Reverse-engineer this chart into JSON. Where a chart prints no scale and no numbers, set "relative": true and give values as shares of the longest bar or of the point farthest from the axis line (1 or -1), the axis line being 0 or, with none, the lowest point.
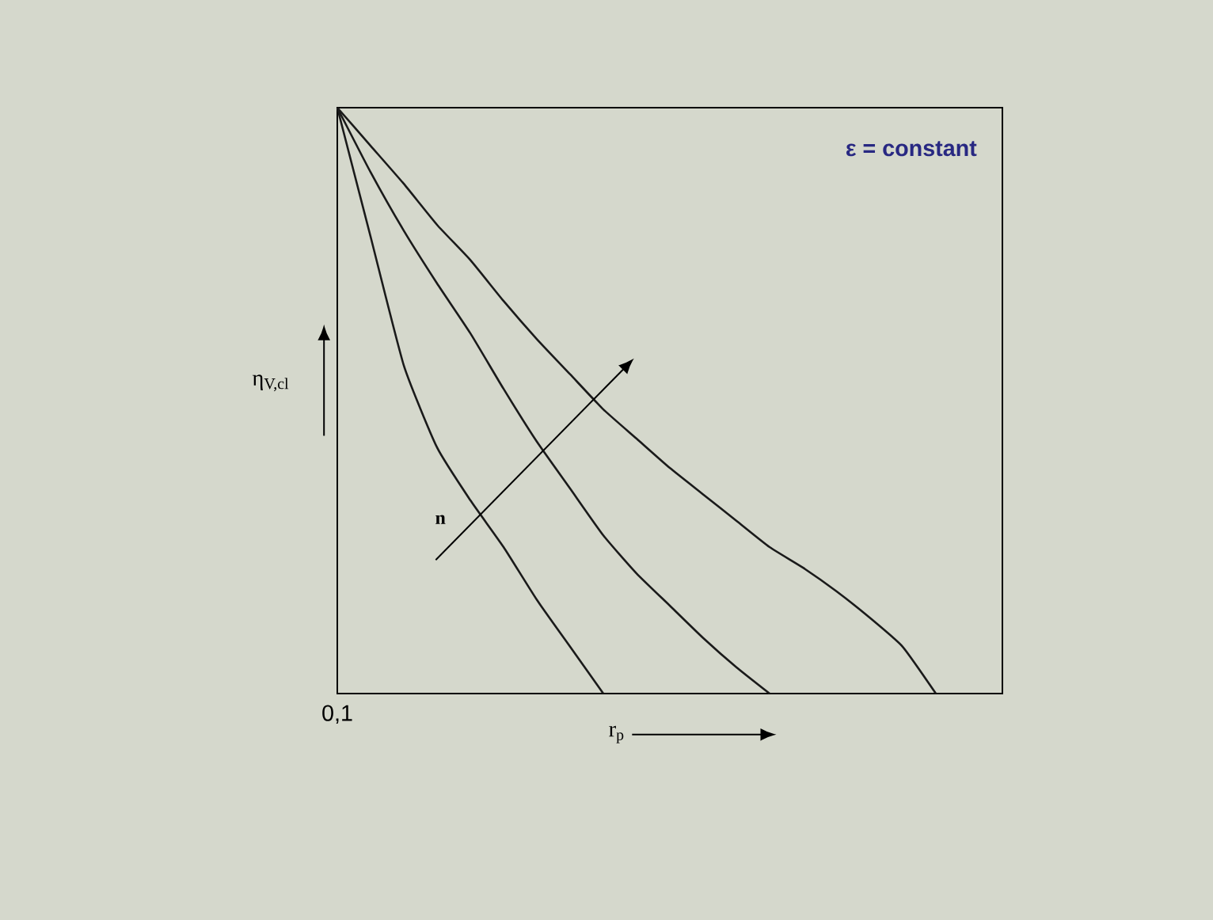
{
  "chart_data": {
    "type": "line",
    "relative": true,
    "xlabel": "r$_{p}$",
    "ylabel": "η$_{V,cl}$",
    "annotations": [
      "ε = constant",
      "n",
      "0,1"
    ],
    "categories": [
      null,
      null,
      null,
      null,
      null,
      null,
      null,
      null,
      null,
      null,
      null,
      null,
      null,
      null,
      null,
      null,
      null,
      null,
      null,
      null,
      null
    ],
    "series": [
      {
        "color": "#1a1a1a",
        "values": [
          1,
          0.78,
          0.56,
          0.42,
          0.33,
          0.25,
          0.16,
          0.08,
          0,
          null,
          null,
          null,
          null,
          null,
          null,
          null,
          null,
          null,
          null,
          null,
          null
        ]
      },
      {
        "color": "#1a1a1a",
        "values": [
          1,
          0.89,
          0.79,
          0.7,
          0.615,
          0.52,
          0.43,
          0.35,
          0.27,
          0.205,
          0.15,
          0.095,
          0.045,
          0,
          null,
          null,
          null,
          null,
          null,
          null,
          null
        ]
      },
      {
        "color": "#1a1a1a",
        "values": [
          1,
          0.935,
          0.87,
          0.8,
          0.74,
          0.67,
          0.605,
          0.545,
          0.485,
          0.435,
          0.385,
          0.34,
          0.295,
          0.25,
          0.215,
          0.175,
          0.13,
          0.08,
          0,
          null,
          null
        ]
      }
    ]
  }
}
